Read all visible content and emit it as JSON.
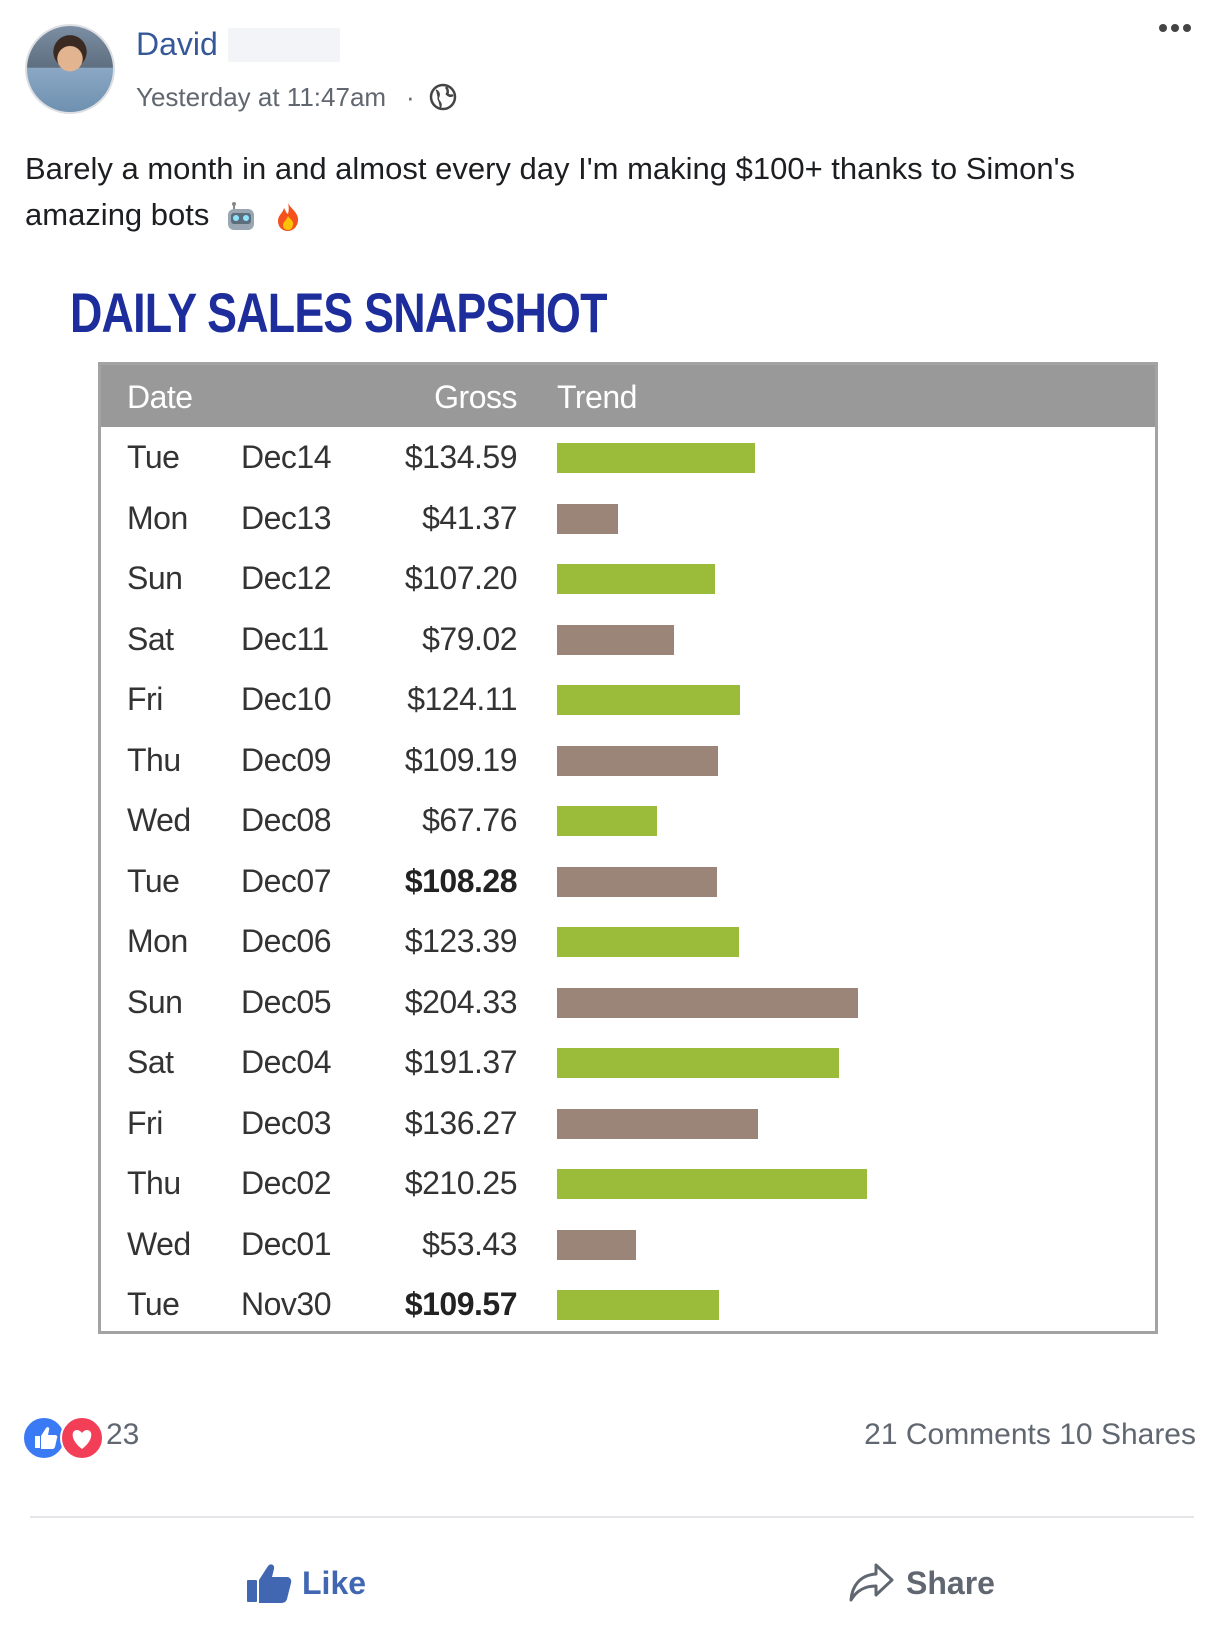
{
  "post": {
    "author": "David",
    "timestamp": "Yesterday at 11:47am",
    "separator": "·",
    "text": "Barely a month in and almost every day I'm making $100+ thanks to Simon's amazing bots",
    "emojis": [
      "robot-face-emoji",
      "fire-emoji"
    ]
  },
  "snapshot": {
    "title": "DAILY SALES SNAPSHOT",
    "columns": {
      "date": "Date",
      "gross": "Gross",
      "trend": "Trend"
    },
    "colors": {
      "header_bg": "#999999",
      "title": "#1d2d9c",
      "bar_green": "#9bbb3b",
      "bar_brown": "#9b8579",
      "border": "#a3a3a3"
    }
  },
  "chart_data": {
    "type": "table",
    "columns": [
      "Date",
      "Gross",
      "Trend"
    ],
    "rows": [
      {
        "day": "Tue",
        "date": "Dec14",
        "gross": "$134.59",
        "value": 134.59,
        "color": "green",
        "bold": false
      },
      {
        "day": "Mon",
        "date": "Dec13",
        "gross": "$41.37",
        "value": 41.37,
        "color": "brown",
        "bold": false
      },
      {
        "day": "Sun",
        "date": "Dec12",
        "gross": "$107.20",
        "value": 107.2,
        "color": "green",
        "bold": false
      },
      {
        "day": "Sat",
        "date": "Dec11",
        "gross": "$79.02",
        "value": 79.02,
        "color": "brown",
        "bold": false
      },
      {
        "day": "Fri",
        "date": "Dec10",
        "gross": "$124.11",
        "value": 124.11,
        "color": "green",
        "bold": false
      },
      {
        "day": "Thu",
        "date": "Dec09",
        "gross": "$109.19",
        "value": 109.19,
        "color": "brown",
        "bold": false
      },
      {
        "day": "Wed",
        "date": "Dec08",
        "gross": "$67.76",
        "value": 67.76,
        "color": "green",
        "bold": false
      },
      {
        "day": "Tue",
        "date": "Dec07",
        "gross": "$108.28",
        "value": 108.28,
        "color": "brown",
        "bold": true
      },
      {
        "day": "Mon",
        "date": "Dec06",
        "gross": "$123.39",
        "value": 123.39,
        "color": "green",
        "bold": false
      },
      {
        "day": "Sun",
        "date": "Dec05",
        "gross": "$204.33",
        "value": 204.33,
        "color": "brown",
        "bold": false
      },
      {
        "day": "Sat",
        "date": "Dec04",
        "gross": "$191.37",
        "value": 191.37,
        "color": "green",
        "bold": false
      },
      {
        "day": "Fri",
        "date": "Dec03",
        "gross": "$136.27",
        "value": 136.27,
        "color": "brown",
        "bold": false
      },
      {
        "day": "Thu",
        "date": "Dec02",
        "gross": "$210.25",
        "value": 210.25,
        "color": "green",
        "bold": false
      },
      {
        "day": "Wed",
        "date": "Dec01",
        "gross": "$53.43",
        "value": 53.43,
        "color": "brown",
        "bold": false
      },
      {
        "day": "Tue",
        "date": "Nov30",
        "gross": "$109.57",
        "value": 109.57,
        "color": "green",
        "bold": true
      }
    ]
  },
  "footer": {
    "reaction_count": "23",
    "comments": "21 Comments",
    "shares": "10 Shares",
    "like_label": "Like",
    "share_label": "Share",
    "icons": [
      "like-reaction-icon",
      "love-reaction-icon",
      "thumbs-up-icon",
      "share-arrow-icon",
      "globe-icon",
      "more-options-icon"
    ]
  }
}
